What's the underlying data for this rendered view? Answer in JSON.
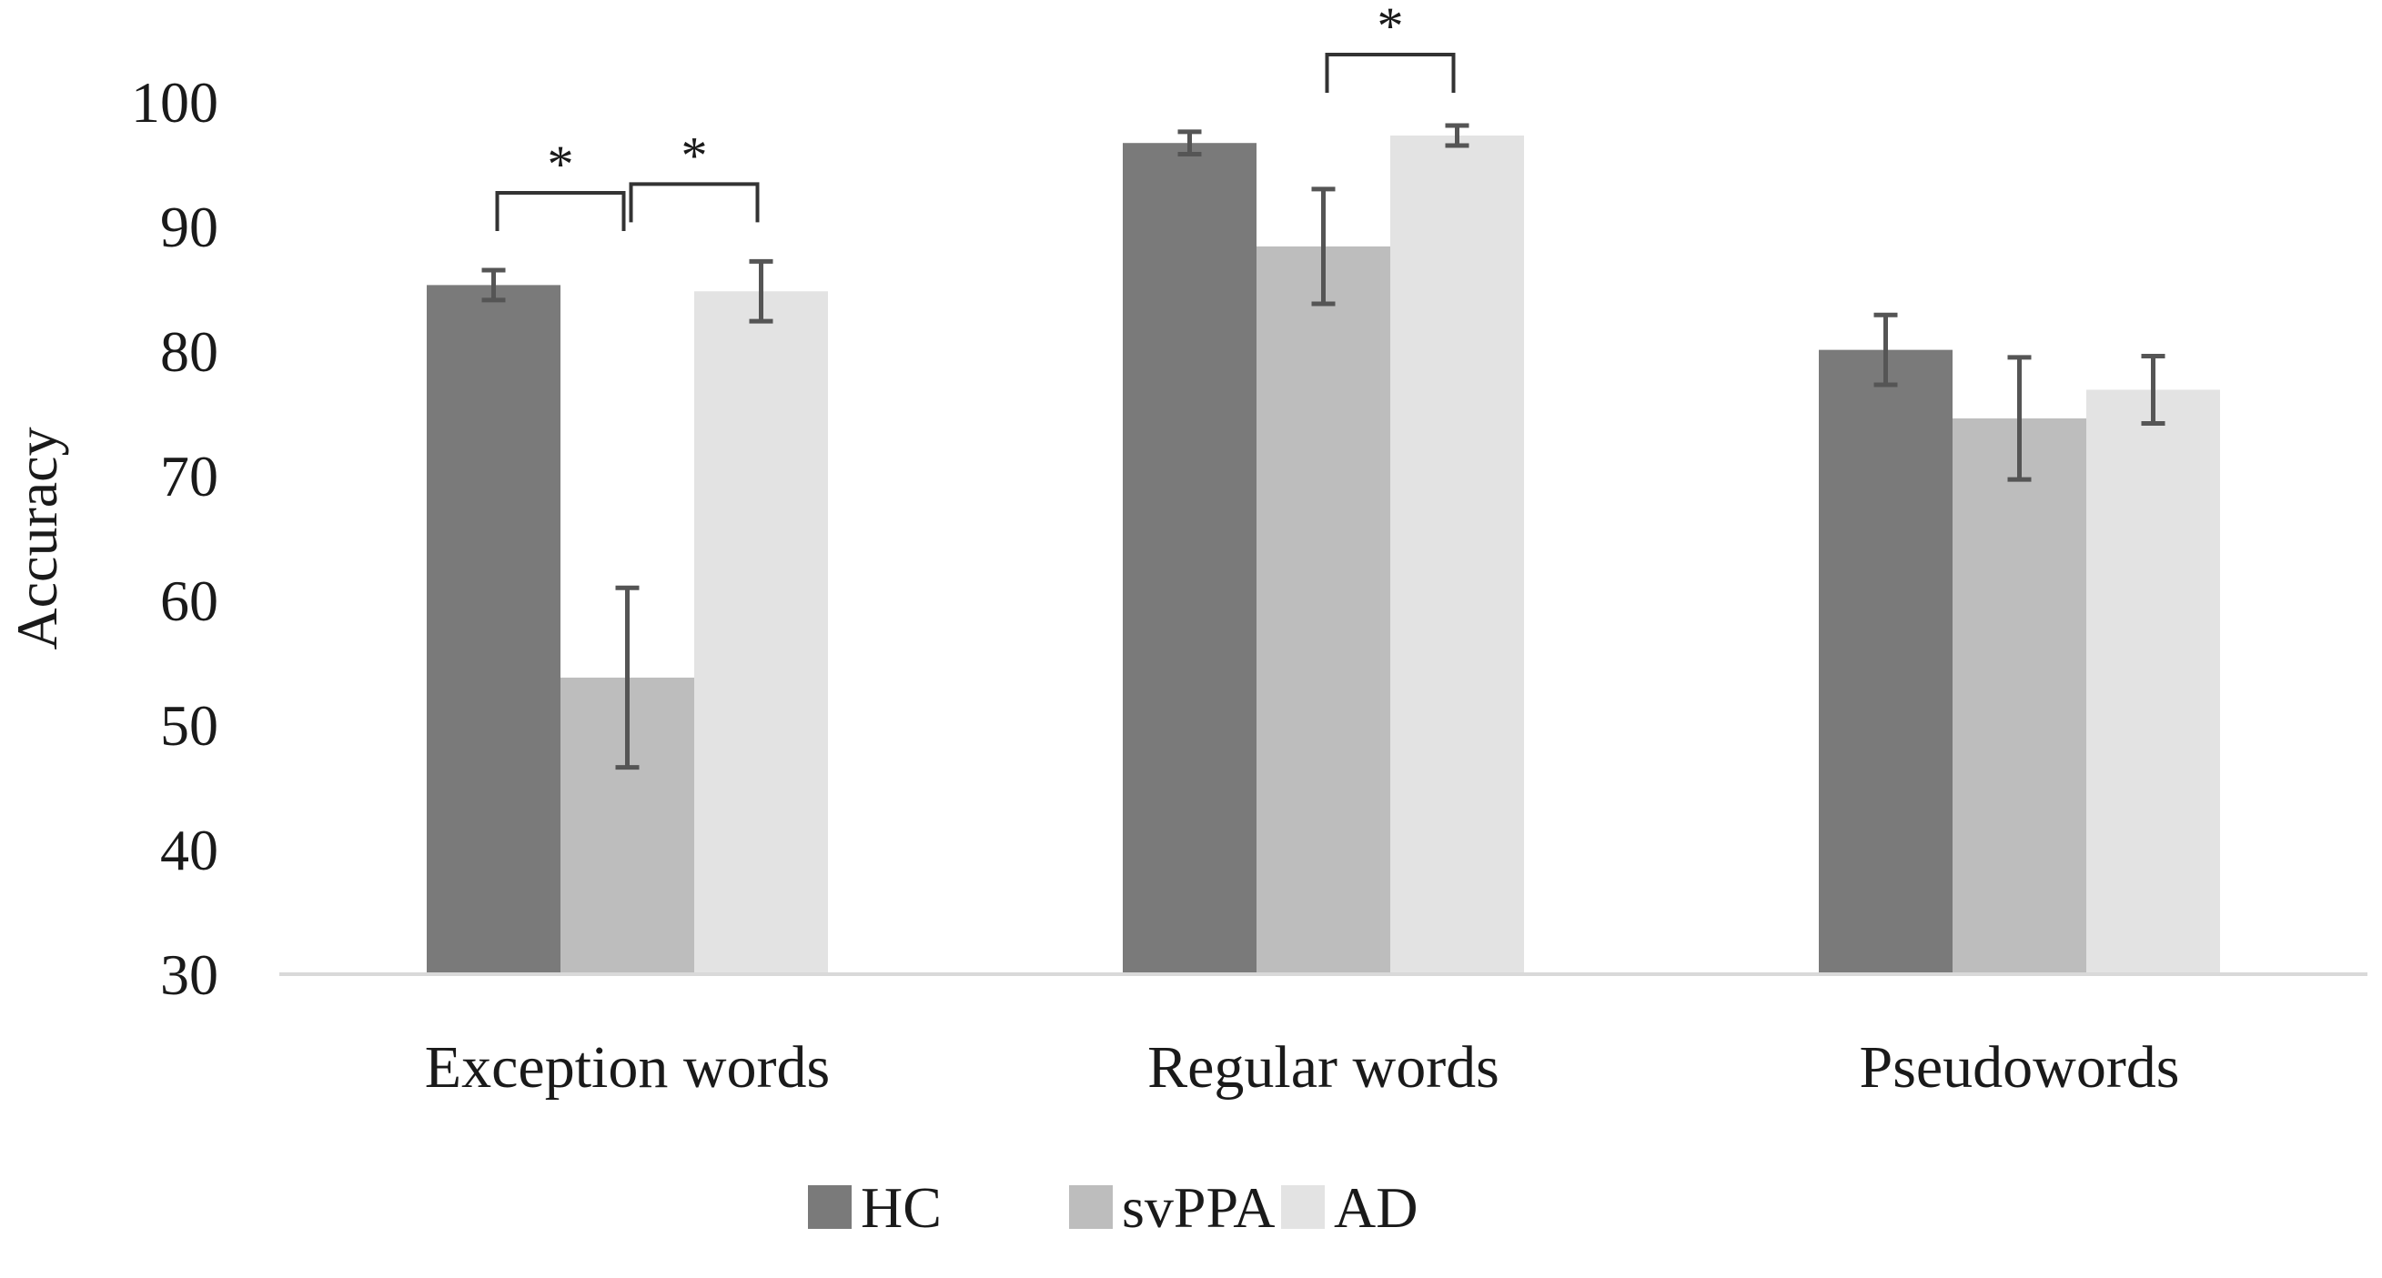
{
  "chart_data": {
    "type": "bar",
    "title": "",
    "ylabel": "Accuracy",
    "xlabel": "",
    "ylim": [
      30,
      100
    ],
    "yticks": [
      30,
      40,
      50,
      60,
      70,
      80,
      90,
      100
    ],
    "categories": [
      "Exception words",
      "Regular words",
      "Pseudowords"
    ],
    "series": [
      {
        "name": "HC",
        "color": "#7a7a7a",
        "values": [
          85.3,
          96.7,
          80.1
        ],
        "error": [
          1.2,
          0.9,
          2.8
        ]
      },
      {
        "name": "svPPA",
        "color": "#bdbdbd",
        "values": [
          53.8,
          88.4,
          74.6
        ],
        "error": [
          7.2,
          4.6,
          4.9
        ]
      },
      {
        "name": "AD",
        "color": "#e3e3e3",
        "values": [
          84.8,
          97.3,
          76.9
        ],
        "error": [
          2.4,
          0.8,
          2.7
        ]
      }
    ],
    "significance": [
      {
        "category": 0,
        "from_series": 0,
        "to_series": 1,
        "label": "*"
      },
      {
        "category": 0,
        "from_series": 1,
        "to_series": 2,
        "label": "*"
      },
      {
        "category": 1,
        "from_series": 1,
        "to_series": 2,
        "label": "*"
      }
    ],
    "grid": false,
    "legend_position": "bottom"
  }
}
